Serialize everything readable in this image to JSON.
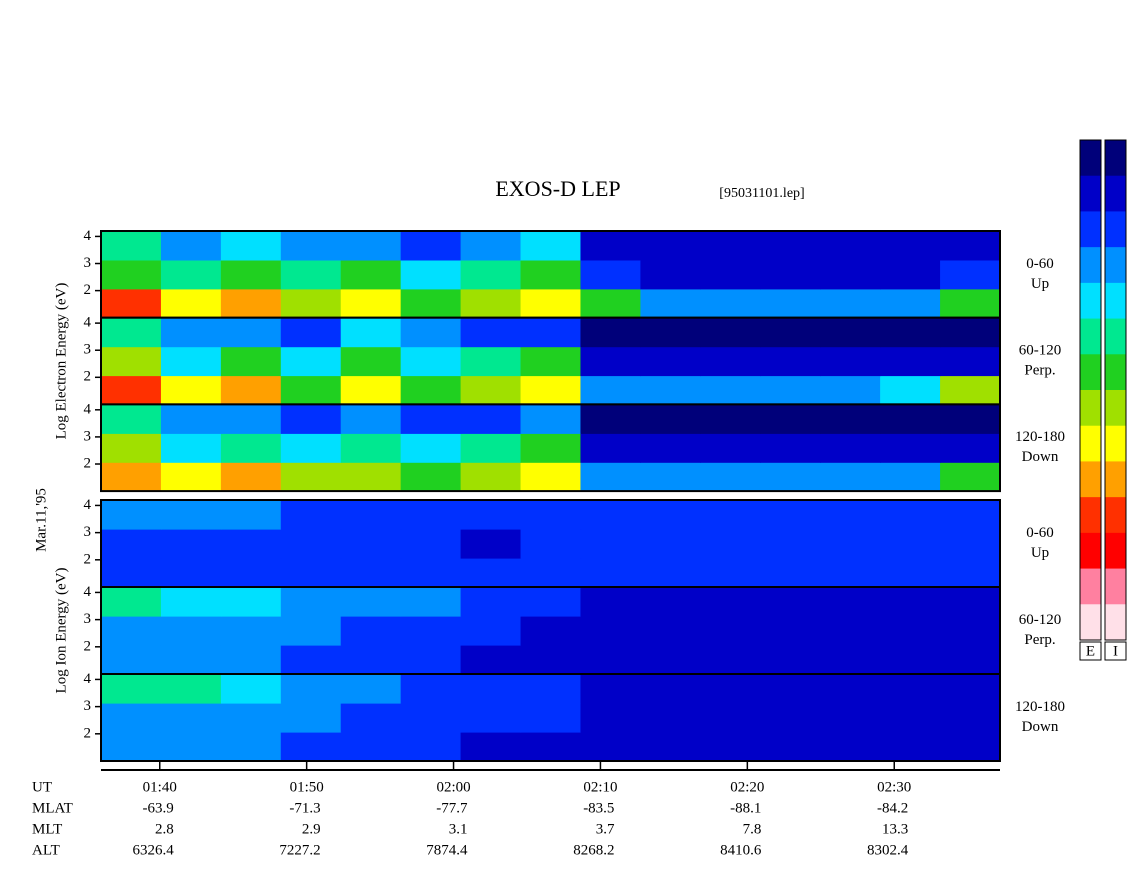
{
  "chart_data": {
    "type": "spectrogram",
    "title": "EXOS-D LEP",
    "subtitle": "[95031101.lep]",
    "date_label": "Mar.11,'95",
    "xlim": [
      96,
      157.2
    ],
    "xticks": [
      {
        "value": 100,
        "label": "01:40"
      },
      {
        "value": 110,
        "label": "01:50"
      },
      {
        "value": 120,
        "label": "02:00"
      },
      {
        "value": 130,
        "label": "02:10"
      },
      {
        "value": 140,
        "label": "02:20"
      },
      {
        "value": 150,
        "label": "02:30"
      }
    ],
    "colorscale": [
      "#00007a",
      "#0000c8",
      "#0030ff",
      "#0090ff",
      "#00e0ff",
      "#00e890",
      "#20d020",
      "#a0e000",
      "#ffff00",
      "#ffa000",
      "#ff3000",
      "#ff0000",
      "#ff80a0",
      "#ffe0e8"
    ],
    "colorbar_labels": [
      "E",
      "I"
    ],
    "groups": [
      {
        "ylabel": "Log Electron Energy (eV)",
        "panels": [
          {
            "label": [
              "0-60",
              "Up"
            ],
            "ylim": [
              1,
              4.2
            ],
            "yticks": [
              2,
              3,
              4
            ],
            "intensity": [
              [
                10,
                8,
                9,
                7,
                8,
                6,
                7,
                8,
                6,
                3,
                3,
                3,
                3,
                3,
                6
              ],
              [
                6,
                5,
                6,
                5,
                6,
                4,
                5,
                6,
                2,
                1,
                1,
                1,
                1,
                1,
                2
              ],
              [
                5,
                3,
                4,
                3,
                3,
                2,
                3,
                4,
                1,
                1,
                1,
                1,
                1,
                1,
                1
              ]
            ]
          },
          {
            "label": [
              "60-120",
              "Perp."
            ],
            "ylim": [
              1,
              4.2
            ],
            "yticks": [
              2,
              3,
              4
            ],
            "intensity": [
              [
                10,
                8,
                9,
                6,
                8,
                6,
                7,
                8,
                3,
                3,
                3,
                3,
                3,
                4,
                7
              ],
              [
                7,
                4,
                6,
                4,
                6,
                4,
                5,
                6,
                1,
                1,
                1,
                1,
                1,
                1,
                1
              ],
              [
                5,
                3,
                3,
                2,
                4,
                3,
                2,
                2,
                0,
                0,
                0,
                0,
                0,
                0,
                0
              ]
            ]
          },
          {
            "label": [
              "120-180",
              "Down"
            ],
            "ylim": [
              1,
              4.2
            ],
            "yticks": [
              2,
              3,
              4
            ],
            "intensity": [
              [
                9,
                8,
                9,
                7,
                7,
                6,
                7,
                8,
                3,
                3,
                3,
                3,
                3,
                3,
                6
              ],
              [
                7,
                4,
                5,
                4,
                5,
                4,
                5,
                6,
                1,
                1,
                1,
                1,
                1,
                1,
                1
              ],
              [
                5,
                3,
                3,
                2,
                3,
                2,
                2,
                3,
                0,
                0,
                0,
                0,
                0,
                0,
                0
              ]
            ]
          }
        ]
      },
      {
        "ylabel": "Log Ion Energy (eV)",
        "panels": [
          {
            "label": [
              "0-60",
              "Up"
            ],
            "ylim": [
              1,
              4.2
            ],
            "yticks": [
              2,
              3,
              4
            ],
            "intensity": [
              [
                2,
                2,
                2,
                2,
                2,
                2,
                2,
                2,
                2,
                2,
                2,
                2,
                2,
                2,
                2
              ],
              [
                2,
                2,
                2,
                2,
                2,
                2,
                1,
                2,
                2,
                2,
                2,
                2,
                2,
                2,
                2
              ],
              [
                3,
                3,
                3,
                2,
                2,
                2,
                2,
                2,
                2,
                2,
                2,
                2,
                2,
                2,
                2
              ]
            ]
          },
          {
            "label": [
              "60-120",
              "Perp."
            ],
            "ylim": [
              1,
              4.2
            ],
            "yticks": [
              2,
              3,
              4
            ],
            "intensity": [
              [
                3,
                3,
                3,
                2,
                2,
                2,
                1,
                1,
                1,
                1,
                1,
                1,
                1,
                1,
                1
              ],
              [
                3,
                3,
                3,
                3,
                2,
                2,
                2,
                1,
                1,
                1,
                1,
                1,
                1,
                1,
                1
              ],
              [
                5,
                4,
                4,
                3,
                3,
                3,
                2,
                2,
                1,
                1,
                1,
                1,
                1,
                1,
                1
              ]
            ]
          },
          {
            "label": [
              "120-180",
              "Down"
            ],
            "ylim": [
              1,
              4.2
            ],
            "yticks": [
              2,
              3,
              4
            ],
            "intensity": [
              [
                3,
                3,
                3,
                2,
                2,
                2,
                1,
                1,
                1,
                1,
                1,
                1,
                1,
                1,
                1
              ],
              [
                3,
                3,
                3,
                3,
                2,
                2,
                2,
                2,
                1,
                1,
                1,
                1,
                1,
                1,
                1
              ],
              [
                5,
                5,
                4,
                3,
                3,
                2,
                2,
                2,
                1,
                1,
                1,
                1,
                1,
                1,
                1
              ]
            ]
          }
        ]
      }
    ],
    "info": {
      "labels": [
        "UT",
        "MLAT",
        "MLT",
        "ALT"
      ],
      "rows": [
        [
          -63.9,
          -71.3,
          -77.7,
          -83.5,
          -88.1,
          -84.2
        ],
        [
          2.8,
          2.9,
          3.1,
          3.7,
          7.8,
          13.3
        ],
        [
          6326.4,
          7227.2,
          7874.4,
          8268.2,
          8410.6,
          8302.4
        ]
      ]
    }
  }
}
